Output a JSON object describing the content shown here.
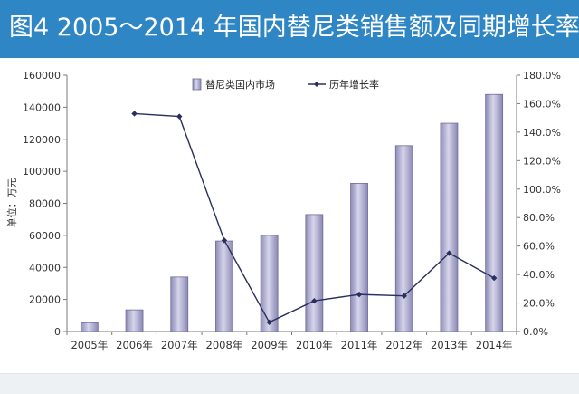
{
  "header": {
    "title": "图4   2005～2014 年国内替尼类销售额及同期增长率"
  },
  "colors": {
    "banner": "#2f86c4",
    "bar_fill_top": "#c4c3de",
    "bar_fill_bottom": "#8e8cb8",
    "bar_stroke": "#6f6d99",
    "line": "#2b2f5e"
  },
  "chart_data": {
    "type": "bar+line",
    "categories": [
      "2005年",
      "2006年",
      "2007年",
      "2008年",
      "2009年",
      "2010年",
      "2011年",
      "2012年",
      "2013年",
      "2014年"
    ],
    "series": [
      {
        "name": "替尼类国内市场",
        "type": "bar",
        "axis": "left",
        "values": [
          5500,
          13500,
          34000,
          56500,
          60000,
          73000,
          92500,
          116000,
          130000,
          148000
        ]
      },
      {
        "name": "历年增长率",
        "type": "line",
        "axis": "right",
        "values": [
          null,
          153,
          151,
          64,
          6.5,
          21.5,
          26,
          25,
          55,
          37.5
        ]
      }
    ],
    "ylabel": "单位：万元",
    "ylim": [
      0,
      160000
    ],
    "yticks": [
      "0",
      "20000",
      "40000",
      "60000",
      "80000",
      "100000",
      "120000",
      "140000",
      "160000"
    ],
    "y2lim": [
      0,
      180
    ],
    "y2ticks": [
      "0.0%",
      "20.0%",
      "40.0%",
      "60.0%",
      "80.0%",
      "100.0%",
      "120.0%",
      "140.0%",
      "160.0%",
      "180.0%"
    ],
    "legend": {
      "placement": "top-center",
      "items": [
        "替尼类国内市场",
        "历年增长率"
      ]
    },
    "grid": false
  }
}
